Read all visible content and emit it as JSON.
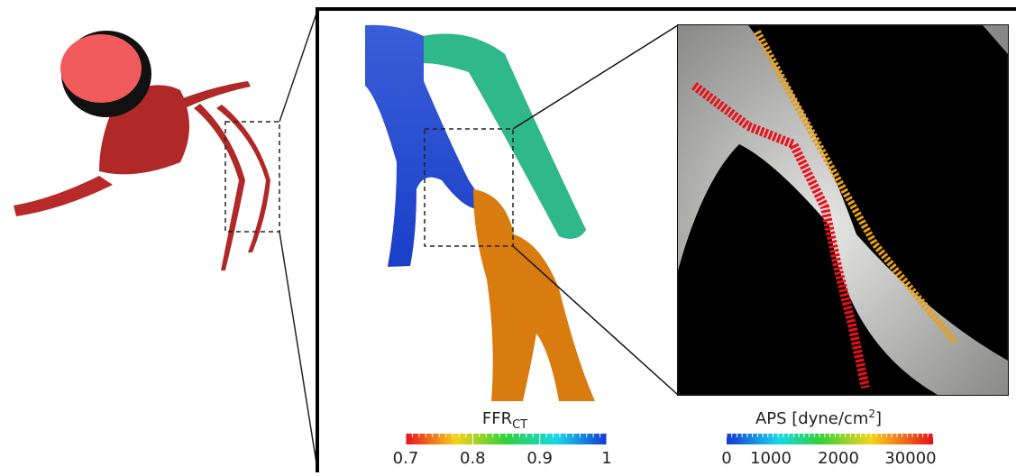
{
  "ffr_colorbar": {
    "title": "FFR",
    "title_subscript": "CT",
    "lim": [
      0.7,
      1
    ],
    "ticks": [
      0.7,
      0.8,
      0.9,
      1
    ]
  },
  "aps_colorbar": {
    "title": "APS [dyne/cm",
    "title_superscript": "2",
    "title_end": "]",
    "ticks": [
      0,
      1000,
      2000,
      30000
    ]
  }
}
